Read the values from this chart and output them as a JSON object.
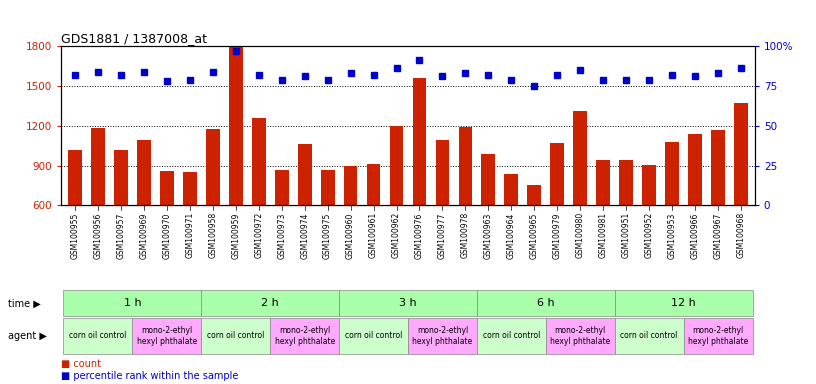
{
  "title": "GDS1881 / 1387008_at",
  "samples": [
    "GSM100955",
    "GSM100956",
    "GSM100957",
    "GSM100969",
    "GSM100970",
    "GSM100971",
    "GSM100958",
    "GSM100959",
    "GSM100972",
    "GSM100973",
    "GSM100974",
    "GSM100975",
    "GSM100960",
    "GSM100961",
    "GSM100962",
    "GSM100976",
    "GSM100977",
    "GSM100978",
    "GSM100963",
    "GSM100964",
    "GSM100965",
    "GSM100979",
    "GSM100980",
    "GSM100981",
    "GSM100951",
    "GSM100952",
    "GSM100953",
    "GSM100966",
    "GSM100967",
    "GSM100968"
  ],
  "counts": [
    1020,
    1180,
    1020,
    1090,
    860,
    855,
    1175,
    1800,
    1255,
    870,
    1060,
    870,
    900,
    910,
    1195,
    1560,
    1090,
    1190,
    990,
    840,
    755,
    1070,
    1310,
    940,
    940,
    905,
    1080,
    1140,
    1170,
    1370
  ],
  "percentiles": [
    82,
    84,
    82,
    84,
    78,
    79,
    84,
    97,
    82,
    79,
    81,
    79,
    83,
    82,
    86,
    91,
    81,
    83,
    82,
    79,
    75,
    82,
    85,
    79,
    79,
    79,
    82,
    81,
    83,
    86
  ],
  "bar_color": "#cc2200",
  "marker_color": "#0000cc",
  "ylim_left": [
    600,
    1800
  ],
  "ylim_right": [
    0,
    100
  ],
  "yticks_left": [
    600,
    900,
    1200,
    1500,
    1800
  ],
  "yticks_right": [
    0,
    25,
    50,
    75,
    100
  ],
  "time_groups": [
    {
      "label": "1 h",
      "start": 0,
      "end": 5
    },
    {
      "label": "2 h",
      "start": 6,
      "end": 11
    },
    {
      "label": "3 h",
      "start": 12,
      "end": 17
    },
    {
      "label": "6 h",
      "start": 18,
      "end": 23
    },
    {
      "label": "12 h",
      "start": 24,
      "end": 29
    }
  ],
  "agent_groups": [
    {
      "label": "corn oil control",
      "start": 0,
      "end": 2,
      "color": "#ccffcc"
    },
    {
      "label": "mono-2-ethyl\nhexyl phthalate",
      "start": 3,
      "end": 5,
      "color": "#ffaaff"
    },
    {
      "label": "corn oil control",
      "start": 6,
      "end": 8,
      "color": "#ccffcc"
    },
    {
      "label": "mono-2-ethyl\nhexyl phthalate",
      "start": 9,
      "end": 11,
      "color": "#ffaaff"
    },
    {
      "label": "corn oil control",
      "start": 12,
      "end": 14,
      "color": "#ccffcc"
    },
    {
      "label": "mono-2-ethyl\nhexyl phthalate",
      "start": 15,
      "end": 17,
      "color": "#ffaaff"
    },
    {
      "label": "corn oil control",
      "start": 18,
      "end": 20,
      "color": "#ccffcc"
    },
    {
      "label": "mono-2-ethyl\nhexyl phthalate",
      "start": 21,
      "end": 23,
      "color": "#ffaaff"
    },
    {
      "label": "corn oil control",
      "start": 24,
      "end": 26,
      "color": "#ccffcc"
    },
    {
      "label": "mono-2-ethyl\nhexyl phthalate",
      "start": 27,
      "end": 29,
      "color": "#ffaaff"
    }
  ],
  "time_color": "#aaffaa",
  "bg_color": "#ffffff",
  "label_color_left": "#cc2200",
  "label_color_right": "#0000cc",
  "legend_count_label": "count",
  "legend_percentile_label": "percentile rank within the sample"
}
